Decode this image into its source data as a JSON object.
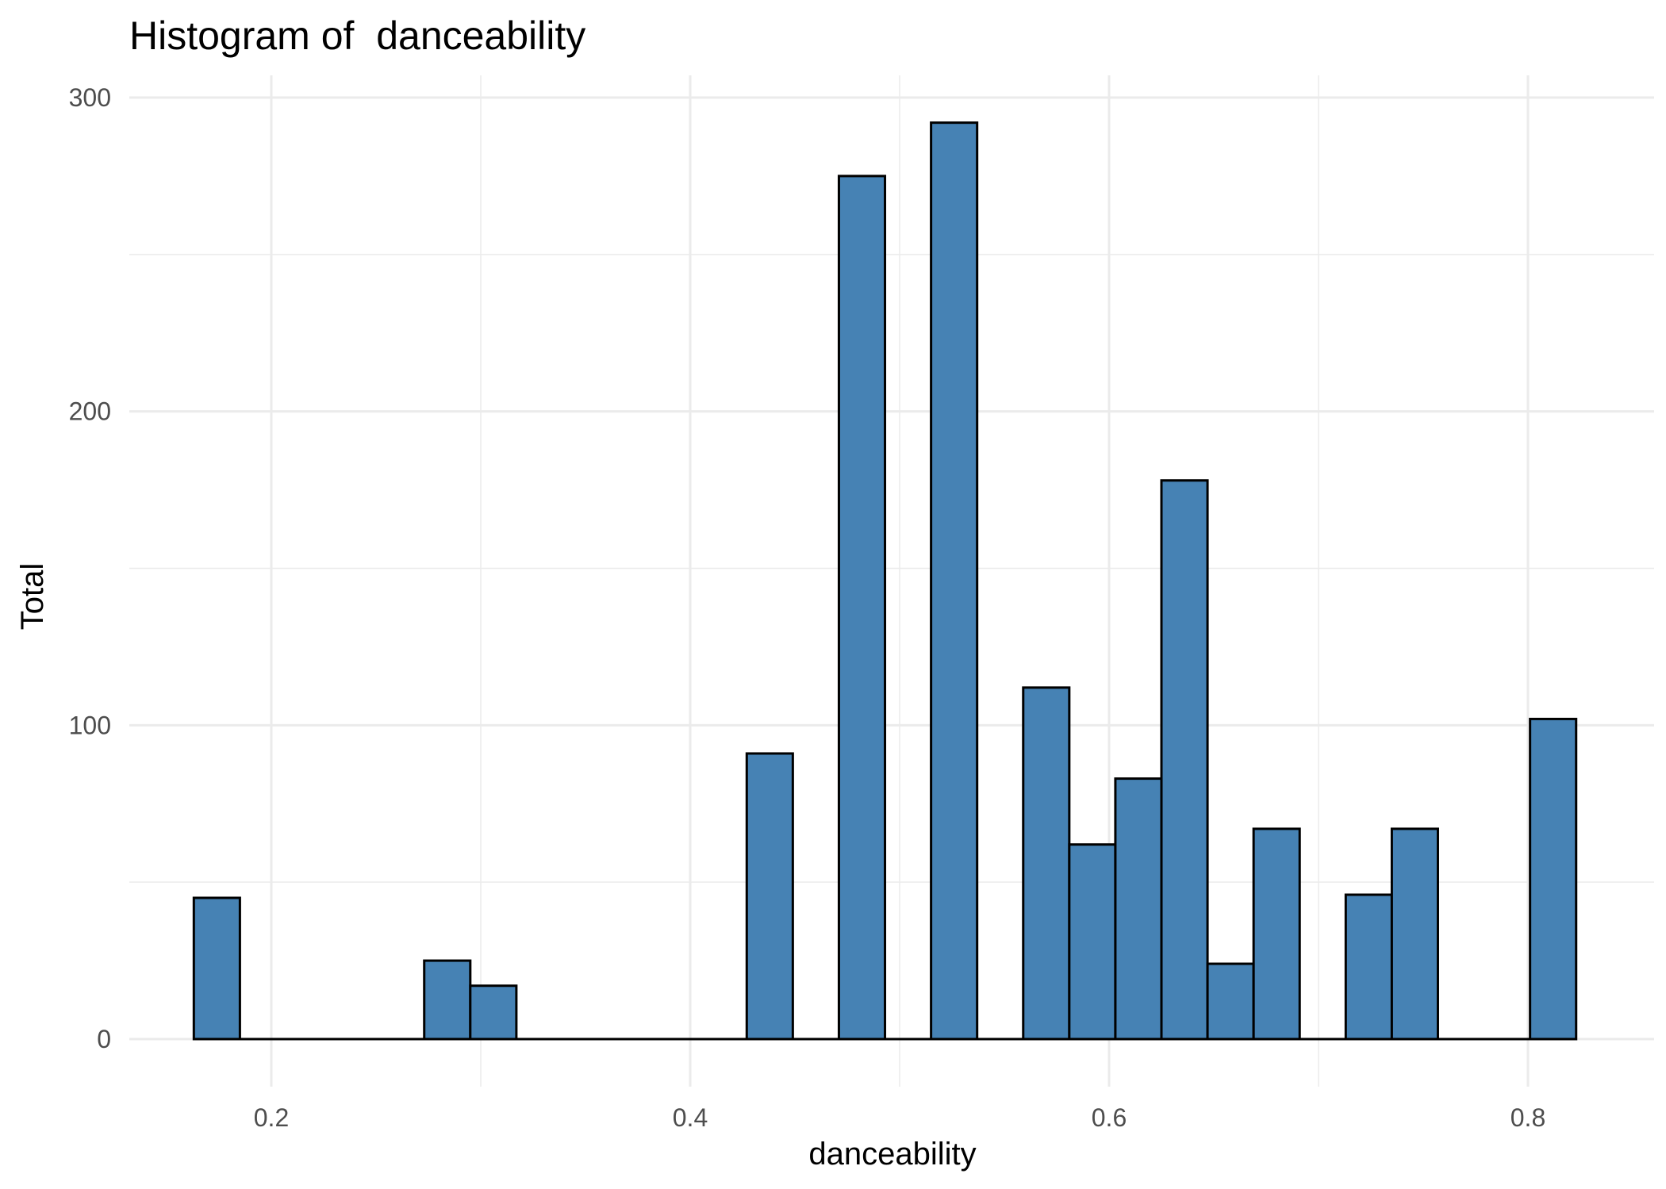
{
  "chart_data": {
    "type": "bar",
    "title": "Histogram of  danceability",
    "xlabel": "danceability",
    "ylabel": "Total",
    "xlim": [
      0.13,
      0.86
    ],
    "ylim": [
      -12,
      307
    ],
    "x_ticks": [
      0.2,
      0.4,
      0.6,
      0.8
    ],
    "x_tick_labels": [
      "0.2",
      "0.4",
      "0.6",
      "0.8"
    ],
    "y_ticks": [
      0,
      100,
      200,
      300
    ],
    "y_tick_labels": [
      "0",
      "100",
      "200",
      "300"
    ],
    "grid": true,
    "bin_width": 0.022,
    "bar_color": "#4682b4",
    "bar_outline": "#000000",
    "bars": [
      {
        "x0": 0.163,
        "x1": 0.185,
        "value": 45
      },
      {
        "x0": 0.185,
        "x1": 0.207,
        "value": 0
      },
      {
        "x0": 0.207,
        "x1": 0.229,
        "value": 0
      },
      {
        "x0": 0.229,
        "x1": 0.251,
        "value": 0
      },
      {
        "x0": 0.251,
        "x1": 0.273,
        "value": 0
      },
      {
        "x0": 0.273,
        "x1": 0.295,
        "value": 25
      },
      {
        "x0": 0.295,
        "x1": 0.317,
        "value": 17
      },
      {
        "x0": 0.317,
        "x1": 0.339,
        "value": 0
      },
      {
        "x0": 0.339,
        "x1": 0.361,
        "value": 0
      },
      {
        "x0": 0.361,
        "x1": 0.383,
        "value": 0
      },
      {
        "x0": 0.383,
        "x1": 0.405,
        "value": 0
      },
      {
        "x0": 0.405,
        "x1": 0.427,
        "value": 0
      },
      {
        "x0": 0.427,
        "x1": 0.449,
        "value": 91
      },
      {
        "x0": 0.449,
        "x1": 0.471,
        "value": 0
      },
      {
        "x0": 0.471,
        "x1": 0.493,
        "value": 275
      },
      {
        "x0": 0.493,
        "x1": 0.515,
        "value": 0
      },
      {
        "x0": 0.515,
        "x1": 0.537,
        "value": 292
      },
      {
        "x0": 0.537,
        "x1": 0.559,
        "value": 0
      },
      {
        "x0": 0.559,
        "x1": 0.581,
        "value": 112
      },
      {
        "x0": 0.581,
        "x1": 0.603,
        "value": 62
      },
      {
        "x0": 0.603,
        "x1": 0.625,
        "value": 83
      },
      {
        "x0": 0.625,
        "x1": 0.647,
        "value": 178
      },
      {
        "x0": 0.647,
        "x1": 0.669,
        "value": 24
      },
      {
        "x0": 0.669,
        "x1": 0.691,
        "value": 67
      },
      {
        "x0": 0.691,
        "x1": 0.713,
        "value": 0
      },
      {
        "x0": 0.713,
        "x1": 0.735,
        "value": 46
      },
      {
        "x0": 0.735,
        "x1": 0.757,
        "value": 67
      },
      {
        "x0": 0.757,
        "x1": 0.779,
        "value": 0
      },
      {
        "x0": 0.779,
        "x1": 0.801,
        "value": 0
      },
      {
        "x0": 0.801,
        "x1": 0.823,
        "value": 102
      }
    ]
  }
}
